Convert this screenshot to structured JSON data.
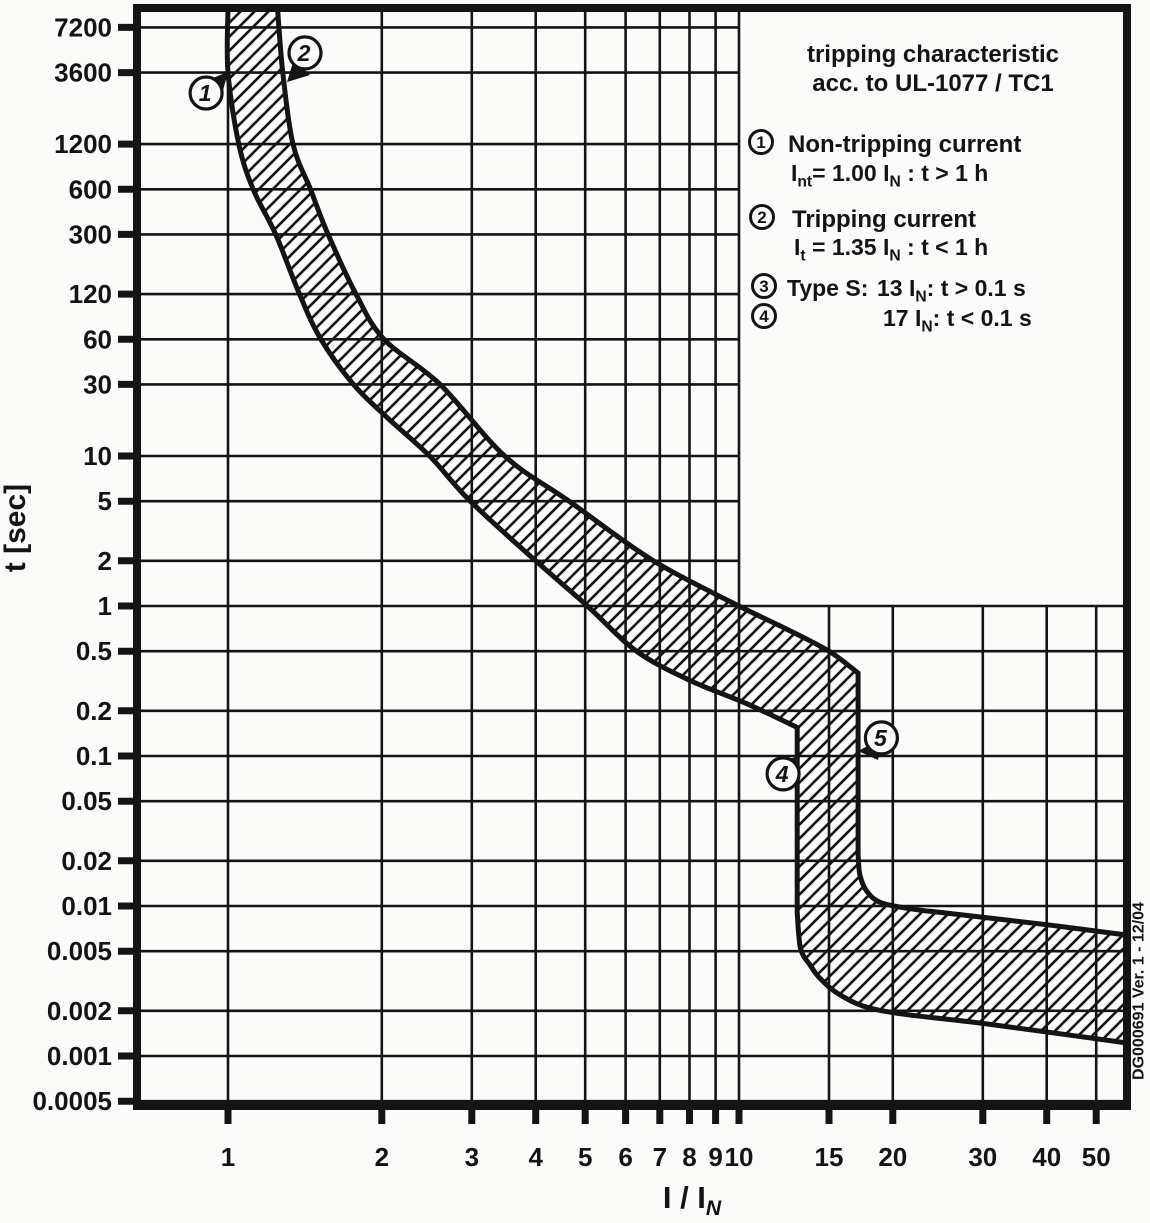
{
  "legend": {
    "title_line1": "tripping characteristic",
    "title_line2": "acc. to UL-1077 / TC1",
    "items": [
      {
        "num": "1",
        "name": "Non-tripping current",
        "formula": {
          "a": "I",
          "asub": "nt",
          "b": "= 1.00 I",
          "bsub": "N",
          "c": " : t > 1 h"
        }
      },
      {
        "num": "2",
        "name": "Tripping current",
        "formula": {
          "a": "I",
          "asub": "t",
          "b": " = 1.35 I",
          "bsub": "N",
          "c": " : t < 1 h"
        }
      },
      {
        "num": "3",
        "prefix": "Type S:",
        "formula": {
          "b": "13 I",
          "bsub": "N",
          "c": ": t > 0.1 s"
        }
      },
      {
        "num": "4",
        "formula": {
          "b": "17 I",
          "bsub": "N",
          "c": ": t < 0.1 s"
        }
      }
    ]
  },
  "watermark": "DG000691  Ver. 1 - 12/04",
  "chart_data": {
    "type": "area",
    "title": "tripping characteristic acc. to UL-1077 / TC1",
    "xlabel": "I / IN",
    "ylabel": "t [sec]",
    "xlabel_parts": {
      "base": "I / I",
      "sub": "N"
    },
    "x_scale": "log",
    "y_scale": "log",
    "x_ticks": [
      1,
      2,
      3,
      4,
      5,
      6,
      7,
      8,
      9,
      10,
      15,
      20,
      30,
      40,
      50
    ],
    "y_ticks": [
      7200,
      3600,
      1200,
      600,
      300,
      120,
      60,
      30,
      10,
      5,
      2,
      1,
      0.5,
      0.2,
      0.1,
      0.05,
      0.02,
      0.01,
      0.005,
      0.002,
      0.001,
      0.0005
    ],
    "xlim": [
      0.64,
      58
    ],
    "ylim": [
      0.00047,
      9700
    ],
    "grid": "on",
    "band": {
      "name": "tripping tolerance band (hatched)",
      "hatch": true,
      "min_boundary": [
        [
          1.0,
          9698
        ],
        [
          1.0,
          3600
        ],
        [
          1.05,
          1200
        ],
        [
          1.12,
          600
        ],
        [
          1.24,
          300
        ],
        [
          1.38,
          120
        ],
        [
          1.52,
          60
        ],
        [
          1.76,
          30
        ],
        [
          2.05,
          18
        ],
        [
          2.48,
          10
        ],
        [
          2.98,
          5
        ],
        [
          4.0,
          2
        ],
        [
          5.05,
          1
        ],
        [
          6.3,
          0.5
        ],
        [
          8.0,
          0.32
        ],
        [
          10.3,
          0.225
        ],
        [
          13,
          0.155
        ]
      ],
      "min_step_current": 13,
      "min_step_bottom_t": 0.009,
      "bottom_edge": [
        [
          13,
          0.009
        ],
        [
          13.2,
          0.0052
        ],
        [
          13.8,
          0.004
        ],
        [
          14.4,
          0.0033
        ],
        [
          15.5,
          0.00265
        ],
        [
          17.5,
          0.00215
        ],
        [
          21,
          0.0019
        ],
        [
          30,
          0.00165
        ],
        [
          57.5,
          0.00122
        ]
      ],
      "max_boundary": [
        [
          1.25,
          9698
        ],
        [
          1.28,
          3600
        ],
        [
          1.34,
          1200
        ],
        [
          1.45,
          600
        ],
        [
          1.57,
          300
        ],
        [
          1.78,
          120
        ],
        [
          2.02,
          60
        ],
        [
          2.6,
          30
        ],
        [
          3.48,
          10
        ],
        [
          4.65,
          5
        ],
        [
          6.8,
          2
        ],
        [
          10.0,
          1
        ],
        [
          12.2,
          0.72
        ],
        [
          15.0,
          0.5
        ],
        [
          17.1,
          0.357
        ]
      ],
      "max_step_current": 17.1,
      "max_step_bottom_t": 0.022,
      "top_edge_high_current": [
        [
          17.1,
          0.022
        ],
        [
          17.25,
          0.016
        ],
        [
          17.8,
          0.0125
        ],
        [
          19.0,
          0.0105
        ],
        [
          22,
          0.0095
        ],
        [
          26,
          0.0089
        ],
        [
          40,
          0.0075
        ],
        [
          57.5,
          0.0064
        ]
      ]
    },
    "markers": [
      {
        "label": "1",
        "I": 0.906,
        "t": 2630
      },
      {
        "label": "2",
        "I": 1.415,
        "t": 4870
      },
      {
        "label": "4",
        "I": 12.2,
        "t": 0.076
      },
      {
        "label": "5",
        "I": 19.0,
        "t": 0.132
      }
    ]
  }
}
